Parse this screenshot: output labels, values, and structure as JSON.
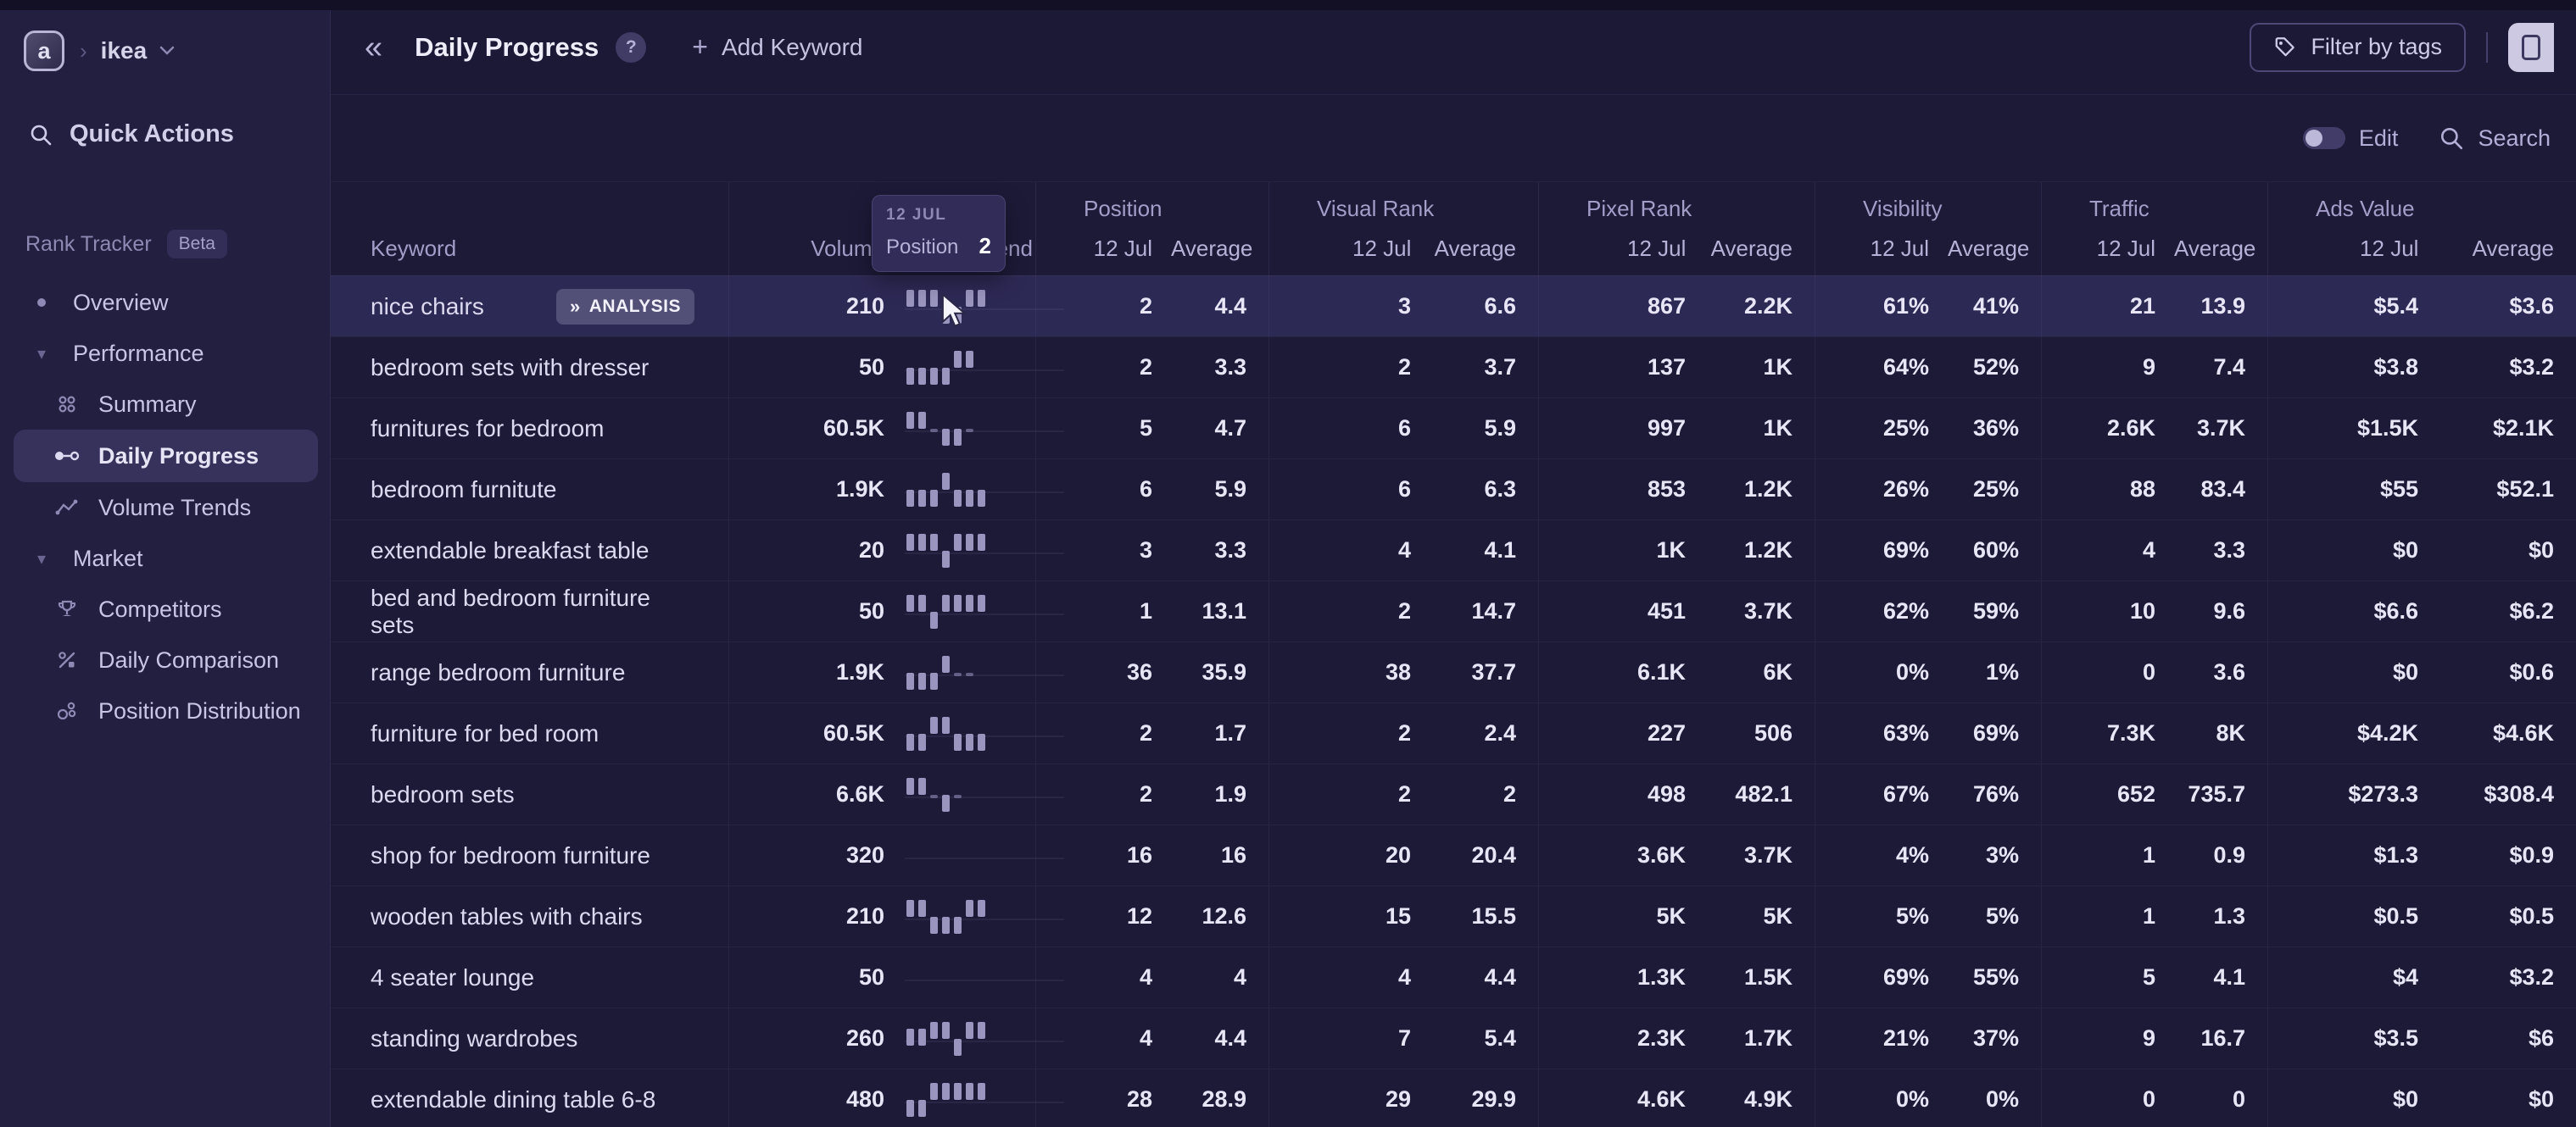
{
  "app": {
    "workspace": "ikea"
  },
  "sidebar": {
    "quick_actions": "Quick Actions",
    "section_label": "Rank Tracker",
    "beta_badge": "Beta",
    "items": [
      {
        "label": "Overview"
      },
      {
        "label": "Performance"
      },
      {
        "label": "Summary"
      },
      {
        "label": "Daily Progress"
      },
      {
        "label": "Volume Trends"
      },
      {
        "label": "Market"
      },
      {
        "label": "Competitors"
      },
      {
        "label": "Daily Comparison"
      },
      {
        "label": "Position Distribution"
      }
    ]
  },
  "header": {
    "title": "Daily Progress",
    "help": "?",
    "add_keyword": "Add Keyword",
    "filter_by_tags": "Filter by tags",
    "edit_label": "Edit",
    "edit_toggle_state": "off",
    "search_label": "Search"
  },
  "tooltip": {
    "date": "12 JUL",
    "metric": "Position",
    "value": "2"
  },
  "table": {
    "analysis_label": "ANALYSIS",
    "columns": {
      "keyword": "Keyword",
      "volume": "Volume",
      "trend": "Trend"
    },
    "sub": {
      "day": "12 Jul",
      "avg": "Average"
    },
    "groups": [
      {
        "label": "Position"
      },
      {
        "label": "Visual Rank"
      },
      {
        "label": "Pixel Rank"
      },
      {
        "label": "Visibility"
      },
      {
        "label": "Traffic"
      },
      {
        "label": "Ads Value"
      }
    ],
    "rows": [
      {
        "keyword": "nice chairs",
        "analysis": true,
        "hover": true,
        "volume": "210",
        "spark": [
          0,
          0,
          0,
          2,
          2,
          0,
          0
        ],
        "values": [
          "2",
          "4.4",
          "3",
          "6.6",
          "867",
          "2.2K",
          "61%",
          "41%",
          "21",
          "13.9",
          "$5.4",
          "$3.6"
        ]
      },
      {
        "keyword": "bedroom sets with dresser",
        "volume": "50",
        "spark": [
          2,
          2,
          2,
          2,
          0,
          0
        ],
        "values": [
          "2",
          "3.3",
          "2",
          "3.7",
          "137",
          "1K",
          "64%",
          "52%",
          "9",
          "7.4",
          "$3.8",
          "$3.2"
        ]
      },
      {
        "keyword": "furnitures for bedroom",
        "volume": "60.5K",
        "spark": [
          0,
          0,
          9,
          2,
          2,
          9
        ],
        "values": [
          "5",
          "4.7",
          "6",
          "5.9",
          "997",
          "1K",
          "25%",
          "36%",
          "2.6K",
          "3.7K",
          "$1.5K",
          "$2.1K"
        ]
      },
      {
        "keyword": "bedroom furnitute",
        "volume": "1.9K",
        "spark": [
          2,
          2,
          2,
          0,
          2,
          2,
          2
        ],
        "values": [
          "6",
          "5.9",
          "6",
          "6.3",
          "853",
          "1.2K",
          "26%",
          "25%",
          "88",
          "83.4",
          "$55",
          "$52.1"
        ]
      },
      {
        "keyword": "extendable breakfast table",
        "volume": "20",
        "spark": [
          0,
          0,
          0,
          2,
          0,
          0,
          0
        ],
        "values": [
          "3",
          "3.3",
          "4",
          "4.1",
          "1K",
          "1.2K",
          "69%",
          "60%",
          "4",
          "3.3",
          "$0",
          "$0"
        ]
      },
      {
        "keyword": "bed and bedroom furniture sets",
        "volume": "50",
        "spark": [
          0,
          0,
          2,
          0,
          0,
          0,
          0
        ],
        "values": [
          "1",
          "13.1",
          "2",
          "14.7",
          "451",
          "3.7K",
          "62%",
          "59%",
          "10",
          "9.6",
          "$6.6",
          "$6.2"
        ]
      },
      {
        "keyword": "range bedroom furniture",
        "volume": "1.9K",
        "spark": [
          2,
          2,
          2,
          0,
          9,
          9
        ],
        "values": [
          "36",
          "35.9",
          "38",
          "37.7",
          "6.1K",
          "6K",
          "0%",
          "1%",
          "0",
          "3.6",
          "$0",
          "$0.6"
        ]
      },
      {
        "keyword": "furniture for bed room",
        "volume": "60.5K",
        "spark": [
          2,
          2,
          0,
          0,
          2,
          2,
          2
        ],
        "values": [
          "2",
          "1.7",
          "2",
          "2.4",
          "227",
          "506",
          "63%",
          "69%",
          "7.3K",
          "8K",
          "$4.2K",
          "$4.6K"
        ]
      },
      {
        "keyword": "bedroom sets",
        "volume": "6.6K",
        "spark": [
          0,
          0,
          9,
          2,
          9
        ],
        "values": [
          "2",
          "1.9",
          "2",
          "2",
          "498",
          "482.1",
          "67%",
          "76%",
          "652",
          "735.7",
          "$273.3",
          "$308.4"
        ]
      },
      {
        "keyword": "shop for bedroom furniture",
        "volume": "320",
        "spark": [],
        "values": [
          "16",
          "16",
          "20",
          "20.4",
          "3.6K",
          "3.7K",
          "4%",
          "3%",
          "1",
          "0.9",
          "$1.3",
          "$0.9"
        ]
      },
      {
        "keyword": "wooden tables with chairs",
        "volume": "210",
        "spark": [
          0,
          0,
          2,
          2,
          2,
          0,
          0
        ],
        "values": [
          "12",
          "12.6",
          "15",
          "15.5",
          "5K",
          "5K",
          "5%",
          "5%",
          "1",
          "1.3",
          "$0.5",
          "$0.5"
        ]
      },
      {
        "keyword": "4 seater lounge",
        "volume": "50",
        "spark": [],
        "values": [
          "4",
          "4",
          "4",
          "4.4",
          "1.3K",
          "1.5K",
          "69%",
          "55%",
          "5",
          "4.1",
          "$4",
          "$3.2"
        ]
      },
      {
        "keyword": "standing wardrobes",
        "volume": "260",
        "spark": [
          1,
          1,
          0,
          0,
          2,
          0,
          0
        ],
        "values": [
          "4",
          "4.4",
          "7",
          "5.4",
          "2.3K",
          "1.7K",
          "21%",
          "37%",
          "9",
          "16.7",
          "$3.5",
          "$6"
        ]
      },
      {
        "keyword": "extendable dining table 6-8",
        "volume": "480",
        "spark": [
          2,
          2,
          0,
          0,
          0,
          0,
          0
        ],
        "values": [
          "28",
          "28.9",
          "29",
          "29.9",
          "4.6K",
          "4.9K",
          "0%",
          "0%",
          "0",
          "0",
          "$0",
          "$0"
        ]
      }
    ]
  }
}
